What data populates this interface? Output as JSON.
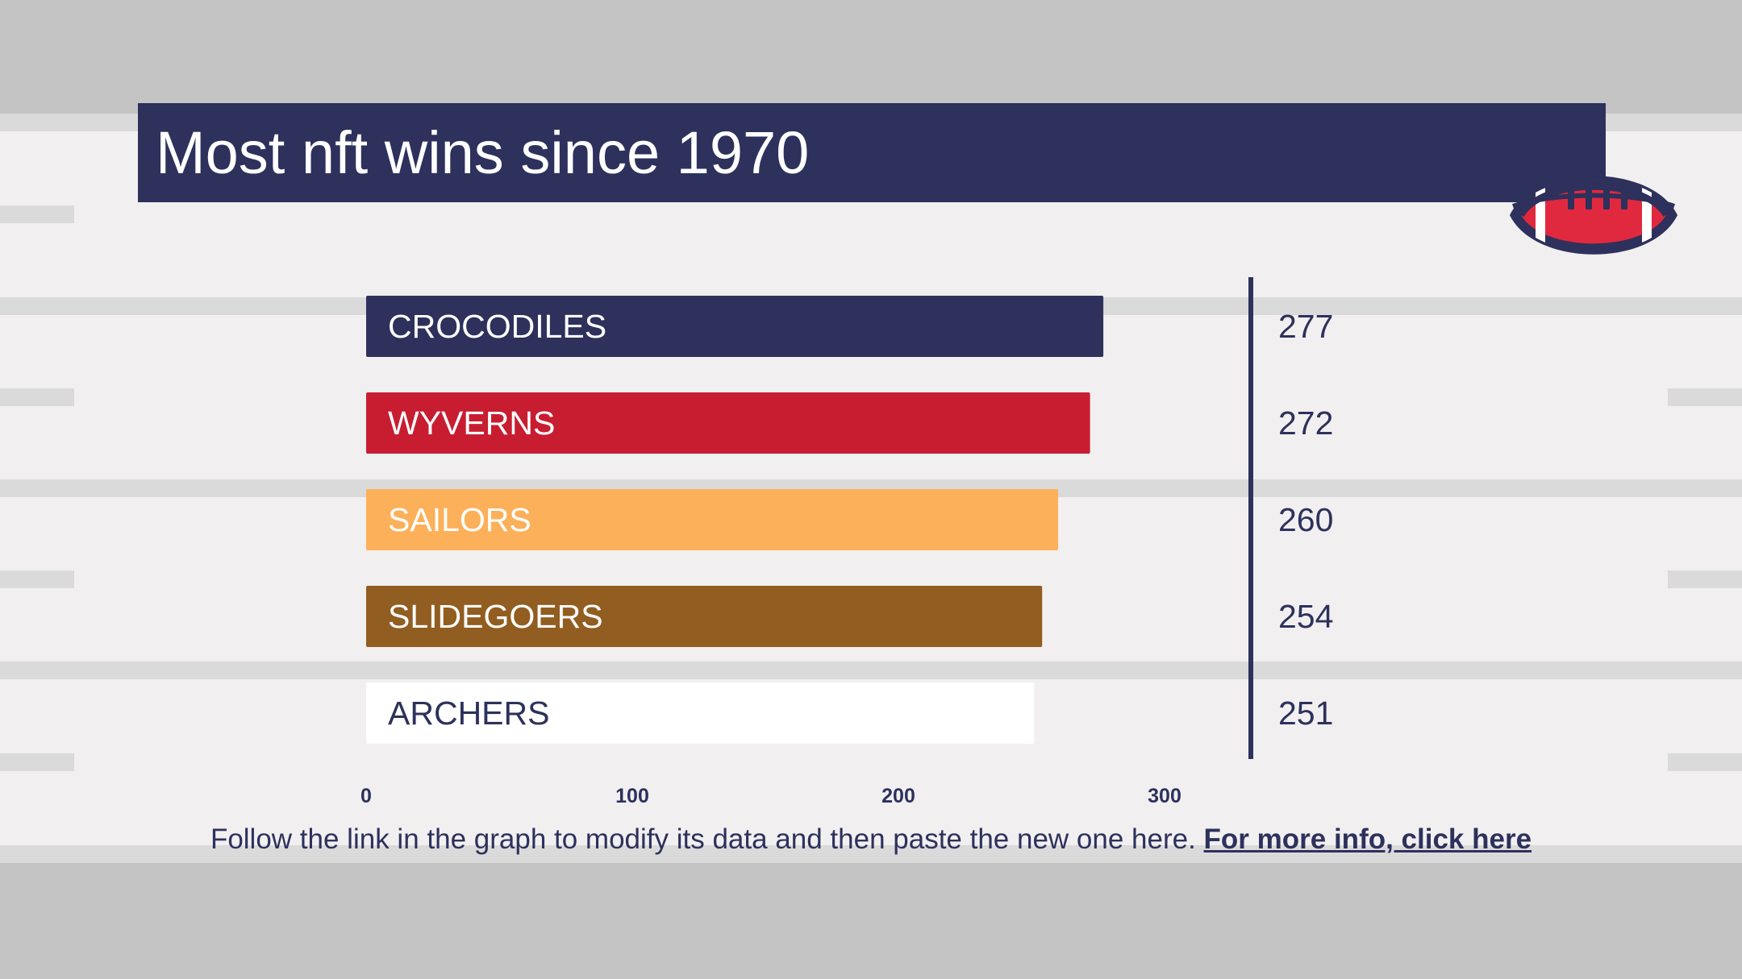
{
  "chart_data": {
    "type": "bar",
    "orientation": "horizontal",
    "title": "Most nft wins since 1970",
    "categories": [
      "CROCODILES",
      "WYVERNS",
      "SAILORS",
      "SLIDEGOERS",
      "ARCHERS"
    ],
    "values": [
      277,
      272,
      260,
      254,
      251
    ],
    "value_labels": [
      "277",
      "272",
      "260",
      "254",
      "251"
    ],
    "colors": [
      "#2d315c",
      "#c81d31",
      "#fcb05a",
      "#925d21",
      "#ffffff"
    ],
    "label_colors": [
      "#ffffff",
      "#ffffff",
      "#ffffff",
      "#ffffff",
      "#2d315c"
    ],
    "xlim": [
      0,
      330
    ],
    "xticks": [
      0,
      100,
      200,
      300
    ],
    "xtick_labels": [
      "0",
      "100",
      "200",
      "300"
    ],
    "grid": false,
    "legend": "none"
  },
  "footer": {
    "text": "Follow the link in the graph to modify its data and then paste the new one here.",
    "link_label": "For more info, click here"
  },
  "colors": {
    "navy": "#2d315c",
    "red": "#c81d31",
    "field": "#f1eff0",
    "stripe": "#dbdadb",
    "background": "#c5c4c5"
  },
  "icons": {
    "badge": "football-icon"
  }
}
